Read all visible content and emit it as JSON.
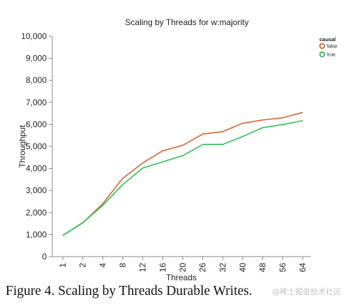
{
  "chart_data": {
    "type": "line",
    "title": "Scaling by Threads for w:majority",
    "xlabel": "Threads",
    "ylabel": "Throughput",
    "categories": [
      "1",
      "2",
      "4",
      "8",
      "12",
      "16",
      "20",
      "26",
      "32",
      "40",
      "48",
      "56",
      "64"
    ],
    "ylim": [
      0,
      10000
    ],
    "yticks": [
      "0",
      "1,000",
      "2,000",
      "3,000",
      "4,000",
      "5,000",
      "6,000",
      "7,000",
      "8,000",
      "9,000",
      "10,000"
    ],
    "grid": false,
    "legend": {
      "title": "causal",
      "placement": "top-right"
    },
    "series": [
      {
        "name": "false",
        "color": "#d9622b",
        "values": [
          960,
          1530,
          2400,
          3550,
          4250,
          4800,
          5050,
          5560,
          5670,
          6050,
          6200,
          6300,
          6540
        ]
      },
      {
        "name": "true",
        "color": "#2dbf55",
        "values": [
          960,
          1540,
          2320,
          3270,
          4020,
          4300,
          4580,
          5090,
          5090,
          5450,
          5850,
          5990,
          6170
        ]
      }
    ]
  },
  "caption": "Figure 4. Scaling by Threads Durable Writes.",
  "watermark": "@稀土掘金技术社区"
}
